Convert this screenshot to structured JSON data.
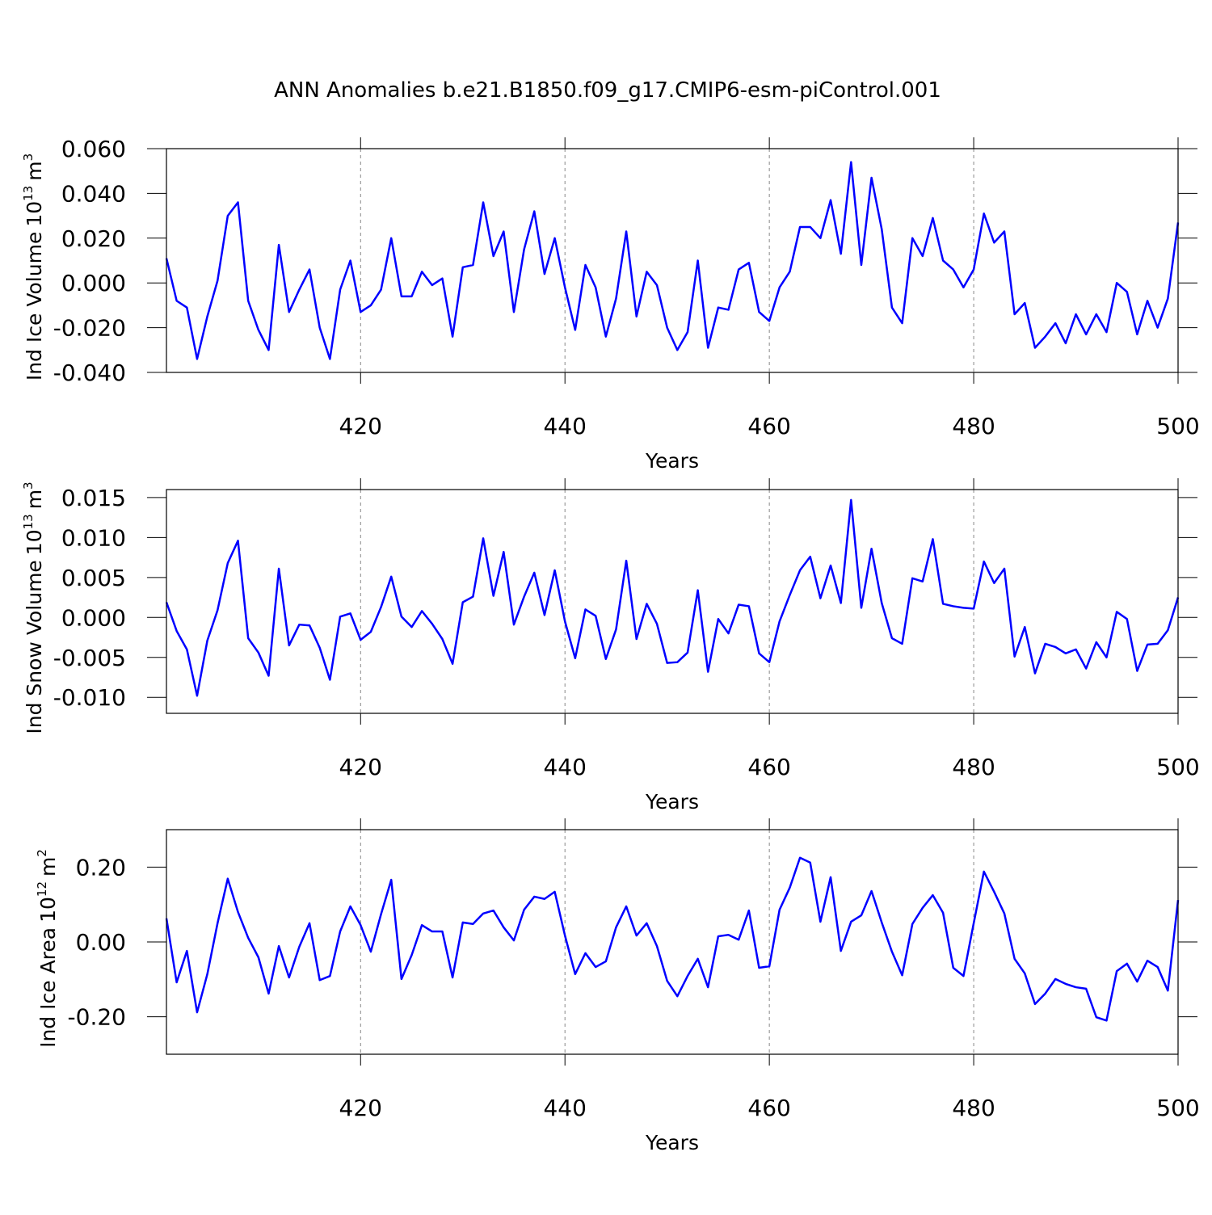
{
  "title": "ANN Anomalies b.e21.B1850.f09_g17.CMIP6-esm-piControl.001",
  "chart_data": [
    {
      "type": "line",
      "color": "#0000ff",
      "grid": "x",
      "ylabel": {
        "name": "Ind Ice Volume",
        "scale_base": "10",
        "scale_exp": "13",
        "unit": "m",
        "unit_exp": "3"
      },
      "xlabel": "Years",
      "xlim": [
        401,
        500
      ],
      "xticks": [
        420,
        440,
        460,
        480,
        500
      ],
      "ylim": [
        -0.04,
        0.06
      ],
      "yticks": [
        {
          "value": -0.04,
          "label": "-0.040"
        },
        {
          "value": -0.02,
          "label": "-0.020"
        },
        {
          "value": 0,
          "label": "0.000"
        },
        {
          "value": 0.02,
          "label": "0.020"
        },
        {
          "value": 0.04,
          "label": "0.040"
        },
        {
          "value": 0.06,
          "label": "0.060"
        }
      ],
      "x": [
        401,
        402,
        403,
        404,
        405,
        406,
        407,
        408,
        409,
        410,
        411,
        412,
        413,
        414,
        415,
        416,
        417,
        418,
        419,
        420,
        421,
        422,
        423,
        424,
        425,
        426,
        427,
        428,
        429,
        430,
        431,
        432,
        433,
        434,
        435,
        436,
        437,
        438,
        439,
        440,
        441,
        442,
        443,
        444,
        445,
        446,
        447,
        448,
        449,
        450,
        451,
        452,
        453,
        454,
        455,
        456,
        457,
        458,
        459,
        460,
        461,
        462,
        463,
        464,
        465,
        466,
        467,
        468,
        469,
        470,
        471,
        472,
        473,
        474,
        475,
        476,
        477,
        478,
        479,
        480,
        481,
        482,
        483,
        484,
        485,
        486,
        487,
        488,
        489,
        490,
        491,
        492,
        493,
        494,
        495,
        496,
        497,
        498,
        499,
        500
      ],
      "values": [
        0.011,
        -0.008,
        -0.011,
        -0.034,
        -0.015,
        0.001,
        0.03,
        0.036,
        -0.008,
        -0.021,
        -0.03,
        0.017,
        -0.013,
        -0.003,
        0.006,
        -0.02,
        -0.034,
        -0.003,
        0.01,
        -0.013,
        -0.01,
        -0.003,
        0.02,
        -0.006,
        -0.006,
        0.005,
        -0.001,
        0.002,
        -0.024,
        0.007,
        0.008,
        0.036,
        0.012,
        0.023,
        -0.013,
        0.015,
        0.032,
        0.004,
        0.02,
        -0.002,
        -0.021,
        0.008,
        -0.002,
        -0.024,
        -0.007,
        0.023,
        -0.015,
        0.005,
        -0.001,
        -0.02,
        -0.03,
        -0.022,
        0.01,
        -0.029,
        -0.011,
        -0.012,
        0.006,
        0.009,
        -0.013,
        -0.017,
        -0.002,
        0.005,
        0.025,
        0.025,
        0.02,
        0.037,
        0.013,
        0.054,
        0.008,
        0.047,
        0.024,
        -0.011,
        -0.018,
        0.02,
        0.012,
        0.029,
        0.01,
        0.006,
        -0.002,
        0.006,
        0.031,
        0.018,
        0.023,
        -0.014,
        -0.009,
        -0.029,
        -0.024,
        -0.018,
        -0.027,
        -0.014,
        -0.023,
        -0.014,
        -0.022,
        0.0,
        -0.004,
        -0.023,
        -0.008,
        -0.02,
        -0.007,
        0.027
      ]
    },
    {
      "type": "line",
      "color": "#0000ff",
      "grid": "x",
      "ylabel": {
        "name": "Ind Snow Volume",
        "scale_base": "10",
        "scale_exp": "13",
        "unit": "m",
        "unit_exp": "3"
      },
      "xlabel": "Years",
      "xlim": [
        401,
        500
      ],
      "xticks": [
        420,
        440,
        460,
        480,
        500
      ],
      "ylim": [
        -0.012,
        0.016
      ],
      "yticks": [
        {
          "value": -0.01,
          "label": "-0.010"
        },
        {
          "value": -0.005,
          "label": "-0.005"
        },
        {
          "value": 0,
          "label": "0.000"
        },
        {
          "value": 0.005,
          "label": "0.005"
        },
        {
          "value": 0.01,
          "label": "0.010"
        },
        {
          "value": 0.015,
          "label": "0.015"
        }
      ],
      "x": [
        401,
        402,
        403,
        404,
        405,
        406,
        407,
        408,
        409,
        410,
        411,
        412,
        413,
        414,
        415,
        416,
        417,
        418,
        419,
        420,
        421,
        422,
        423,
        424,
        425,
        426,
        427,
        428,
        429,
        430,
        431,
        432,
        433,
        434,
        435,
        436,
        437,
        438,
        439,
        440,
        441,
        442,
        443,
        444,
        445,
        446,
        447,
        448,
        449,
        450,
        451,
        452,
        453,
        454,
        455,
        456,
        457,
        458,
        459,
        460,
        461,
        462,
        463,
        464,
        465,
        466,
        467,
        468,
        469,
        470,
        471,
        472,
        473,
        474,
        475,
        476,
        477,
        478,
        479,
        480,
        481,
        482,
        483,
        484,
        485,
        486,
        487,
        488,
        489,
        490,
        491,
        492,
        493,
        494,
        495,
        496,
        497,
        498,
        499,
        500
      ],
      "values": [
        0.0019,
        -0.0017,
        -0.004,
        -0.0098,
        -0.0029,
        0.0009,
        0.0068,
        0.0096,
        -0.0026,
        -0.0044,
        -0.0073,
        0.0061,
        -0.0035,
        -0.0009,
        -0.001,
        -0.0038,
        -0.0078,
        0.0001,
        0.0005,
        -0.0028,
        -0.0018,
        0.0013,
        0.0051,
        0.0001,
        -0.0012,
        0.0008,
        -0.0008,
        -0.0027,
        -0.0058,
        0.0019,
        0.0026,
        0.0099,
        0.0027,
        0.0082,
        -0.0009,
        0.0026,
        0.0056,
        0.0003,
        0.0059,
        -0.0005,
        -0.0051,
        0.001,
        0.0002,
        -0.0052,
        -0.0015,
        0.0071,
        -0.0027,
        0.0017,
        -0.0008,
        -0.0057,
        -0.0056,
        -0.0044,
        0.0034,
        -0.0068,
        -0.0002,
        -0.002,
        0.0016,
        0.0014,
        -0.0045,
        -0.0056,
        -0.0005,
        0.0028,
        0.0059,
        0.0076,
        0.0024,
        0.0065,
        0.0018,
        0.0147,
        0.0012,
        0.0086,
        0.0018,
        -0.0026,
        -0.0033,
        0.0049,
        0.0045,
        0.0098,
        0.0017,
        0.0014,
        0.0012,
        0.0011,
        0.007,
        0.0043,
        0.0061,
        -0.0049,
        -0.0012,
        -0.007,
        -0.0033,
        -0.0037,
        -0.0045,
        -0.004,
        -0.0064,
        -0.0031,
        -0.005,
        0.0007,
        -0.0002,
        -0.0067,
        -0.0034,
        -0.0033,
        -0.0016,
        0.0025
      ]
    },
    {
      "type": "line",
      "color": "#0000ff",
      "grid": "x",
      "ylabel": {
        "name": "Ind Ice Area",
        "scale_base": "10",
        "scale_exp": "12",
        "unit": "m",
        "unit_exp": "2"
      },
      "xlabel": "Years",
      "xlim": [
        401,
        500
      ],
      "xticks": [
        420,
        440,
        460,
        480,
        500
      ],
      "ylim": [
        -0.3,
        0.3
      ],
      "yticks": [
        {
          "value": -0.2,
          "label": "-0.20"
        },
        {
          "value": 0,
          "label": "0.00"
        },
        {
          "value": 0.2,
          "label": "0.20"
        }
      ],
      "x": [
        401,
        402,
        403,
        404,
        405,
        406,
        407,
        408,
        409,
        410,
        411,
        412,
        413,
        414,
        415,
        416,
        417,
        418,
        419,
        420,
        421,
        422,
        423,
        424,
        425,
        426,
        427,
        428,
        429,
        430,
        431,
        432,
        433,
        434,
        435,
        436,
        437,
        438,
        439,
        440,
        441,
        442,
        443,
        444,
        445,
        446,
        447,
        448,
        449,
        450,
        451,
        452,
        453,
        454,
        455,
        456,
        457,
        458,
        459,
        460,
        461,
        462,
        463,
        464,
        465,
        466,
        467,
        468,
        469,
        470,
        471,
        472,
        473,
        474,
        475,
        476,
        477,
        478,
        479,
        480,
        481,
        482,
        483,
        484,
        485,
        486,
        487,
        488,
        489,
        490,
        491,
        492,
        493,
        494,
        495,
        496,
        497,
        498,
        499,
        500
      ],
      "values": [
        0.063,
        -0.108,
        -0.024,
        -0.188,
        -0.086,
        0.05,
        0.169,
        0.08,
        0.011,
        -0.041,
        -0.138,
        -0.011,
        -0.095,
        -0.013,
        0.05,
        -0.102,
        -0.091,
        0.028,
        0.095,
        0.045,
        -0.026,
        0.074,
        0.166,
        -0.099,
        -0.035,
        0.045,
        0.028,
        0.028,
        -0.095,
        0.052,
        0.048,
        0.076,
        0.084,
        0.039,
        0.004,
        0.086,
        0.121,
        0.115,
        0.134,
        0.017,
        -0.086,
        -0.03,
        -0.067,
        -0.052,
        0.039,
        0.095,
        0.017,
        0.05,
        -0.011,
        -0.104,
        -0.145,
        -0.091,
        -0.045,
        -0.121,
        0.015,
        0.019,
        0.006,
        0.084,
        -0.069,
        -0.065,
        0.086,
        0.145,
        0.225,
        0.212,
        0.054,
        0.173,
        -0.024,
        0.054,
        0.071,
        0.136,
        0.052,
        -0.026,
        -0.089,
        0.048,
        0.091,
        0.125,
        0.078,
        -0.069,
        -0.091,
        0.05,
        0.188,
        0.134,
        0.076,
        -0.045,
        -0.084,
        -0.166,
        -0.138,
        -0.099,
        -0.112,
        -0.121,
        -0.125,
        -0.201,
        -0.21,
        -0.078,
        -0.058,
        -0.106,
        -0.05,
        -0.067,
        -0.13,
        0.112
      ]
    }
  ]
}
